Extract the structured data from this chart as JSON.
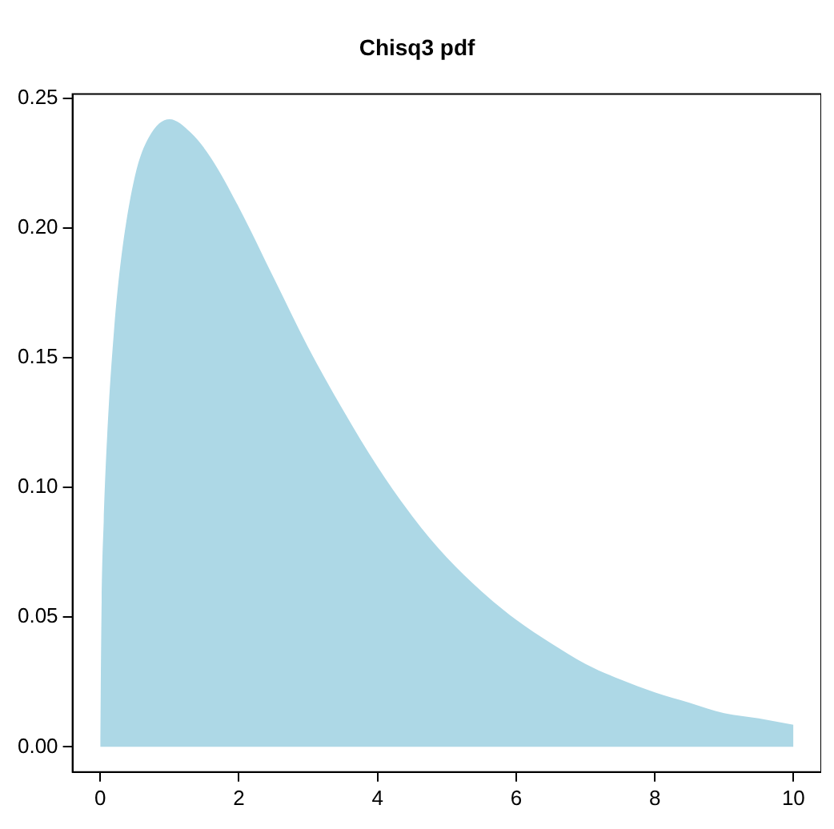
{
  "chart_data": {
    "type": "area",
    "title": "Chisq3 pdf",
    "x": [
      0,
      0.02,
      0.05,
      0.1,
      0.2,
      0.3,
      0.5,
      0.7,
      1,
      1.3,
      1.6,
      2,
      2.5,
      3,
      3.5,
      4,
      4.5,
      5,
      5.5,
      6,
      6.5,
      7,
      7.5,
      8,
      8.5,
      9,
      9.5,
      10
    ],
    "values": [
      0,
      0.056,
      0.087,
      0.12,
      0.161,
      0.188,
      0.22,
      0.235,
      0.242,
      0.237,
      0.227,
      0.208,
      0.181,
      0.154,
      0.13,
      0.108,
      0.089,
      0.073,
      0.06,
      0.049,
      0.04,
      0.032,
      0.026,
      0.021,
      0.017,
      0.013,
      0.011,
      0.0085
    ],
    "color": "#add8e6",
    "xlim": [
      -0.4,
      10.4
    ],
    "ylim": [
      -0.0097,
      0.2517
    ],
    "xticks": [
      0,
      2,
      4,
      6,
      8,
      10
    ],
    "yticks": [
      {
        "value": 0,
        "label": "0.00"
      },
      {
        "value": 0.05,
        "label": "0.05"
      },
      {
        "value": 0.1,
        "label": "0.10"
      },
      {
        "value": 0.15,
        "label": "0.15"
      },
      {
        "value": 0.2,
        "label": "0.20"
      },
      {
        "value": 0.25,
        "label": "0.25"
      }
    ]
  }
}
